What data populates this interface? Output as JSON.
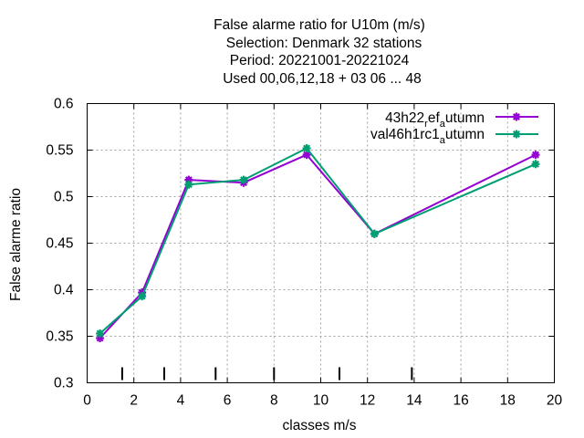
{
  "chart_data": {
    "type": "line",
    "title_lines": [
      "False alarme ratio  for U10m (m/s)",
      "Selection: Denmark     32 stations",
      "Period: 20221001-20221024",
      "Used  00,06,12,18  + 03 06 ... 48"
    ],
    "xlabel": "classes m/s",
    "ylabel": "False alarme ratio",
    "xlim": [
      0,
      20
    ],
    "ylim": [
      0.3,
      0.6
    ],
    "x_ticks": [
      0,
      2,
      4,
      6,
      8,
      10,
      12,
      14,
      16,
      18,
      20
    ],
    "x_tick_labels": [
      "0",
      "2",
      "4",
      "6",
      "8",
      "10",
      "12",
      "14",
      "16",
      "18",
      "20"
    ],
    "y_ticks": [
      0.3,
      0.35,
      0.4,
      0.45,
      0.5,
      0.55,
      0.6
    ],
    "y_tick_labels": [
      "0.3",
      "0.35",
      "0.4",
      "0.45",
      "0.5",
      "0.55",
      "0.6"
    ],
    "grid": true,
    "legend_position": "top-right",
    "class_limits": [
      1.5,
      3.3,
      5.5,
      8.0,
      10.8,
      13.9
    ],
    "series": [
      {
        "legend_main": "43h22",
        "legend_sub1": "r",
        "legend_mid": "ef",
        "legend_sub2": "a",
        "legend_end": "utumn",
        "color": "#9400d3",
        "x": [
          0.55,
          2.35,
          4.35,
          6.7,
          9.4,
          12.3,
          19.2
        ],
        "y": [
          0.348,
          0.397,
          0.518,
          0.515,
          0.545,
          0.46,
          0.545
        ]
      },
      {
        "legend_main": "val46h1rc1",
        "legend_sub1": "a",
        "legend_mid": "",
        "legend_sub2": "",
        "legend_end": "utumn",
        "color": "#009e73",
        "x": [
          0.55,
          2.35,
          4.35,
          6.7,
          9.4,
          12.3,
          19.2
        ],
        "y": [
          0.353,
          0.393,
          0.513,
          0.518,
          0.552,
          0.46,
          0.535
        ]
      }
    ]
  }
}
